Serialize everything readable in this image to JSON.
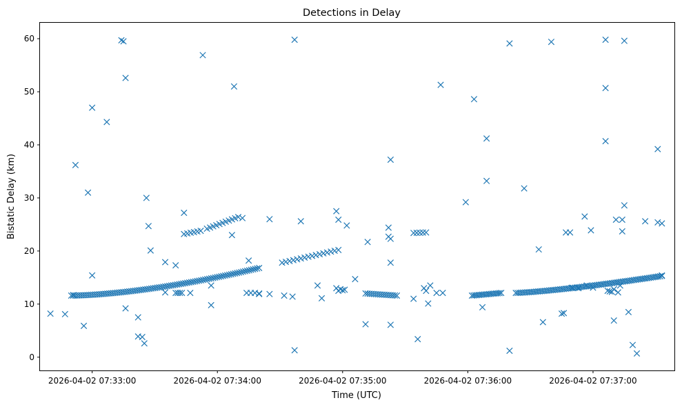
{
  "chart_data": {
    "type": "scatter",
    "title": "Detections in Delay",
    "xlabel": "Time (UTC)",
    "ylabel": "Bistatic Delay (km)",
    "marker": "x",
    "color": "#1f77b4",
    "grid": false,
    "x_unit": "time-of-day HH:MM:SS on 2026-04-02",
    "xlim": [
      "07:32:35",
      "07:37:39"
    ],
    "ylim": [
      -2.5,
      63
    ],
    "xticks": [
      "2026-04-02 07:33:00",
      "2026-04-02 07:34:00",
      "2026-04-02 07:35:00",
      "2026-04-02 07:36:00",
      "2026-04-02 07:37:00"
    ],
    "yticks": [
      "0",
      "10",
      "20",
      "30",
      "40",
      "50",
      "60"
    ],
    "outliers": [
      {
        "x": "07:32:40",
        "y": 8.2
      },
      {
        "x": "07:32:47",
        "y": 8.1
      },
      {
        "x": "07:32:51",
        "y": 11.7
      },
      {
        "x": "07:32:52",
        "y": 36.2
      },
      {
        "x": "07:32:56",
        "y": 5.9
      },
      {
        "x": "07:32:58",
        "y": 31.0
      },
      {
        "x": "07:33:00",
        "y": 47.0
      },
      {
        "x": "07:33:00",
        "y": 15.4
      },
      {
        "x": "07:33:07",
        "y": 44.3
      },
      {
        "x": "07:33:14",
        "y": 59.7
      },
      {
        "x": "07:33:15",
        "y": 59.5
      },
      {
        "x": "07:33:16",
        "y": 52.6
      },
      {
        "x": "07:33:16",
        "y": 9.2
      },
      {
        "x": "07:33:22",
        "y": 7.5
      },
      {
        "x": "07:33:22",
        "y": 3.9
      },
      {
        "x": "07:33:24",
        "y": 3.8
      },
      {
        "x": "07:33:26",
        "y": 30.0
      },
      {
        "x": "07:33:25",
        "y": 2.6
      },
      {
        "x": "07:33:27",
        "y": 24.7
      },
      {
        "x": "07:33:28",
        "y": 20.1
      },
      {
        "x": "07:33:35",
        "y": 17.9
      },
      {
        "x": "07:33:40",
        "y": 17.3
      },
      {
        "x": "07:33:35",
        "y": 12.2
      },
      {
        "x": "07:33:40",
        "y": 12.1
      },
      {
        "x": "07:33:41",
        "y": 12.1
      },
      {
        "x": "07:33:42",
        "y": 12.1
      },
      {
        "x": "07:33:43",
        "y": 12.1
      },
      {
        "x": "07:33:47",
        "y": 12.1
      },
      {
        "x": "07:33:44",
        "y": 27.2
      },
      {
        "x": "07:33:53",
        "y": 56.9
      },
      {
        "x": "07:33:57",
        "y": 9.8
      },
      {
        "x": "07:33:57",
        "y": 13.5
      },
      {
        "x": "07:34:07",
        "y": 23.0
      },
      {
        "x": "07:34:08",
        "y": 51.0
      },
      {
        "x": "07:34:12",
        "y": 26.2
      },
      {
        "x": "07:34:15",
        "y": 18.2
      },
      {
        "x": "07:34:14",
        "y": 12.1
      },
      {
        "x": "07:34:16",
        "y": 12.1
      },
      {
        "x": "07:34:18",
        "y": 12.1
      },
      {
        "x": "07:34:20",
        "y": 12.0
      },
      {
        "x": "07:34:20",
        "y": 11.9
      },
      {
        "x": "07:34:25",
        "y": 26.0
      },
      {
        "x": "07:34:25",
        "y": 11.9
      },
      {
        "x": "07:34:32",
        "y": 11.6
      },
      {
        "x": "07:34:36",
        "y": 11.4
      },
      {
        "x": "07:34:37",
        "y": 59.8
      },
      {
        "x": "07:34:37",
        "y": 1.3
      },
      {
        "x": "07:34:40",
        "y": 25.6
      },
      {
        "x": "07:34:48",
        "y": 13.5
      },
      {
        "x": "07:34:50",
        "y": 11.1
      },
      {
        "x": "07:34:57",
        "y": 27.5
      },
      {
        "x": "07:34:58",
        "y": 25.9
      },
      {
        "x": "07:34:57",
        "y": 13.0
      },
      {
        "x": "07:34:58",
        "y": 12.5
      },
      {
        "x": "07:34:59",
        "y": 12.8
      },
      {
        "x": "07:35:00",
        "y": 12.6
      },
      {
        "x": "07:35:01",
        "y": 12.7
      },
      {
        "x": "07:35:02",
        "y": 24.8
      },
      {
        "x": "07:35:06",
        "y": 14.7
      },
      {
        "x": "07:35:11",
        "y": 6.2
      },
      {
        "x": "07:35:12",
        "y": 21.7
      },
      {
        "x": "07:35:22",
        "y": 22.7
      },
      {
        "x": "07:35:22",
        "y": 24.4
      },
      {
        "x": "07:35:23",
        "y": 22.3
      },
      {
        "x": "07:35:23",
        "y": 37.2
      },
      {
        "x": "07:35:23",
        "y": 17.8
      },
      {
        "x": "07:35:23",
        "y": 6.1
      },
      {
        "x": "07:35:34",
        "y": 11.0
      },
      {
        "x": "07:35:36",
        "y": 3.4
      },
      {
        "x": "07:35:42",
        "y": 13.5
      },
      {
        "x": "07:35:45",
        "y": 12.1
      },
      {
        "x": "07:35:48",
        "y": 12.1
      },
      {
        "x": "07:35:39",
        "y": 13.0
      },
      {
        "x": "07:35:40",
        "y": 12.5
      },
      {
        "x": "07:35:41",
        "y": 10.1
      },
      {
        "x": "07:35:47",
        "y": 51.3
      },
      {
        "x": "07:35:59",
        "y": 29.2
      },
      {
        "x": "07:36:03",
        "y": 48.6
      },
      {
        "x": "07:36:07",
        "y": 9.4
      },
      {
        "x": "07:36:09",
        "y": 41.2
      },
      {
        "x": "07:36:09",
        "y": 33.2
      },
      {
        "x": "07:36:20",
        "y": 59.1
      },
      {
        "x": "07:36:20",
        "y": 1.2
      },
      {
        "x": "07:36:27",
        "y": 31.8
      },
      {
        "x": "07:36:34",
        "y": 20.3
      },
      {
        "x": "07:36:36",
        "y": 6.6
      },
      {
        "x": "07:36:40",
        "y": 59.4
      },
      {
        "x": "07:36:45",
        "y": 8.2
      },
      {
        "x": "07:36:46",
        "y": 8.3
      },
      {
        "x": "07:36:47",
        "y": 23.5
      },
      {
        "x": "07:36:49",
        "y": 23.5
      },
      {
        "x": "07:36:50",
        "y": 13.1
      },
      {
        "x": "07:36:53",
        "y": 13.0
      },
      {
        "x": "07:36:56",
        "y": 26.5
      },
      {
        "x": "07:36:57",
        "y": 13.5
      },
      {
        "x": "07:36:59",
        "y": 23.9
      },
      {
        "x": "07:37:00",
        "y": 13.1
      },
      {
        "x": "07:37:06",
        "y": 59.8
      },
      {
        "x": "07:37:06",
        "y": 50.7
      },
      {
        "x": "07:37:06",
        "y": 40.7
      },
      {
        "x": "07:37:07",
        "y": 12.5
      },
      {
        "x": "07:37:08",
        "y": 12.4
      },
      {
        "x": "07:37:09",
        "y": 12.3
      },
      {
        "x": "07:37:10",
        "y": 12.8
      },
      {
        "x": "07:37:12",
        "y": 12.2
      },
      {
        "x": "07:37:10",
        "y": 6.9
      },
      {
        "x": "07:37:11",
        "y": 25.9
      },
      {
        "x": "07:37:13",
        "y": 13.5
      },
      {
        "x": "07:37:14",
        "y": 25.9
      },
      {
        "x": "07:37:14",
        "y": 23.7
      },
      {
        "x": "07:37:15",
        "y": 28.6
      },
      {
        "x": "07:37:15",
        "y": 59.6
      },
      {
        "x": "07:37:17",
        "y": 8.5
      },
      {
        "x": "07:37:19",
        "y": 2.3
      },
      {
        "x": "07:37:21",
        "y": 0.7
      },
      {
        "x": "07:37:25",
        "y": 25.6
      },
      {
        "x": "07:37:31",
        "y": 25.4
      },
      {
        "x": "07:37:31",
        "y": 39.2
      },
      {
        "x": "07:37:33",
        "y": 25.2
      },
      {
        "x": "07:37:33",
        "y": 15.4
      }
    ],
    "tracks": [
      {
        "start": "07:32:50",
        "end": "07:34:20",
        "y_start": 11.6,
        "y_end": 16.8,
        "count": 95,
        "curve": 1.6
      },
      {
        "start": "07:33:44",
        "end": "07:33:52",
        "y_start": 23.2,
        "y_end": 23.8,
        "count": 6,
        "curve": 1.0
      },
      {
        "start": "07:33:55",
        "end": "07:34:10",
        "y_start": 24.2,
        "y_end": 26.4,
        "count": 11,
        "curve": 1.0
      },
      {
        "start": "07:34:31",
        "end": "07:34:58",
        "y_start": 17.8,
        "y_end": 20.2,
        "count": 16,
        "curve": 1.0
      },
      {
        "start": "07:35:11",
        "end": "07:35:26",
        "y_start": 12.0,
        "y_end": 11.6,
        "count": 16,
        "curve": 1.0
      },
      {
        "start": "07:35:34",
        "end": "07:35:40",
        "y_start": 23.4,
        "y_end": 23.5,
        "count": 5,
        "curve": 1.0
      },
      {
        "start": "07:36:02",
        "end": "07:36:16",
        "y_start": 11.6,
        "y_end": 12.1,
        "count": 18,
        "curve": 1.0
      },
      {
        "start": "07:36:23",
        "end": "07:37:33",
        "y_start": 12.1,
        "y_end": 15.3,
        "count": 80,
        "curve": 1.3
      }
    ]
  }
}
